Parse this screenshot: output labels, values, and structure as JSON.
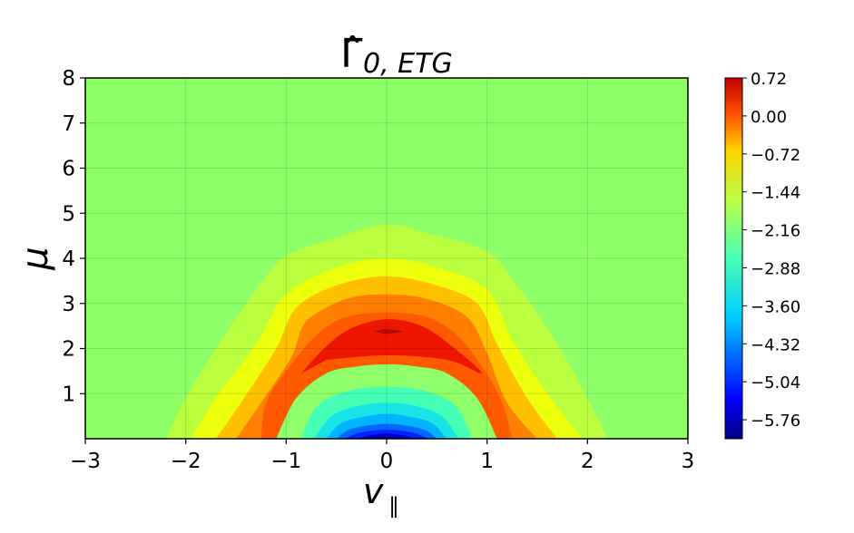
{
  "chart_data": {
    "type": "heatmap",
    "title": "Γ̂",
    "title_subscript": "0, ETG",
    "xlabel": "v",
    "xlabel_subscript": "∥",
    "ylabel": "μ",
    "xlim": [
      -3,
      3
    ],
    "ylim": [
      0,
      8
    ],
    "x_ticks": [
      -3,
      -2,
      -1,
      0,
      1,
      2,
      3
    ],
    "x_tick_labels": [
      "−3",
      "−2",
      "−1",
      "0",
      "1",
      "2",
      "3"
    ],
    "y_ticks": [
      1,
      2,
      3,
      4,
      5,
      6,
      7,
      8
    ],
    "y_tick_labels": [
      "1",
      "2",
      "3",
      "4",
      "5",
      "6",
      "7",
      "8"
    ],
    "grid": true,
    "colormap": "jet",
    "colorbar": {
      "vmin": -6.12,
      "vmax": 0.72,
      "ticks": [
        0.72,
        0.0,
        -0.72,
        -1.44,
        -2.16,
        -2.88,
        -3.6,
        -4.32,
        -5.04,
        -5.76
      ],
      "tick_labels": [
        "0.72",
        "0.00",
        "−0.72",
        "−1.44",
        "−2.16",
        "−2.88",
        "−3.60",
        "−4.32",
        "−5.04",
        "−5.76"
      ]
    },
    "contour_regions": [
      {
        "level": 0.1,
        "color": "#b9ff3e",
        "points": [
          [
            -2.2,
            0
          ],
          [
            -2.0,
            0.9
          ],
          [
            -1.7,
            2.0
          ],
          [
            -1.3,
            3.3
          ],
          [
            -1.0,
            4.05
          ],
          [
            -0.5,
            4.45
          ],
          [
            0,
            4.75
          ],
          [
            0.5,
            4.5
          ],
          [
            1.0,
            4.15
          ],
          [
            1.3,
            3.4
          ],
          [
            1.7,
            2.1
          ],
          [
            2.0,
            0.9
          ],
          [
            2.2,
            0
          ]
        ]
      },
      {
        "level": 0.18,
        "color": "#ecff0b",
        "points": [
          [
            -1.95,
            0
          ],
          [
            -1.7,
            0.9
          ],
          [
            -1.3,
            2.1
          ],
          [
            -1.0,
            3.2
          ],
          [
            -0.5,
            3.8
          ],
          [
            0,
            4.0
          ],
          [
            0.5,
            3.8
          ],
          [
            1.0,
            3.3
          ],
          [
            1.25,
            2.2
          ],
          [
            1.6,
            1.0
          ],
          [
            1.95,
            0
          ]
        ]
      },
      {
        "level": 0.28,
        "color": "#ffc000",
        "points": [
          [
            -1.7,
            0
          ],
          [
            -1.45,
            0.8
          ],
          [
            -1.1,
            2.0
          ],
          [
            -0.9,
            2.9
          ],
          [
            -0.5,
            3.4
          ],
          [
            0,
            3.6
          ],
          [
            0.5,
            3.4
          ],
          [
            0.9,
            3.0
          ],
          [
            1.1,
            2.1
          ],
          [
            1.4,
            0.9
          ],
          [
            1.7,
            0
          ]
        ]
      },
      {
        "level": 0.38,
        "color": "#ff8000",
        "points": [
          [
            -1.5,
            0
          ],
          [
            -1.25,
            0.8
          ],
          [
            -0.95,
            1.8
          ],
          [
            -0.8,
            2.6
          ],
          [
            -0.4,
            3.1
          ],
          [
            0,
            3.2
          ],
          [
            0.4,
            3.1
          ],
          [
            0.8,
            2.7
          ],
          [
            1.0,
            1.9
          ],
          [
            1.2,
            0.8
          ],
          [
            1.5,
            0
          ]
        ]
      },
      {
        "level": 0.48,
        "color": "#ff5a00",
        "points": [
          [
            -1.25,
            0
          ],
          [
            -1.2,
            0.8
          ],
          [
            -1.0,
            1.5
          ],
          [
            -0.7,
            2.3
          ],
          [
            -0.4,
            2.7
          ],
          [
            0,
            2.8
          ],
          [
            0.4,
            2.7
          ],
          [
            0.7,
            2.3
          ],
          [
            0.95,
            1.6
          ],
          [
            1.15,
            0.8
          ],
          [
            1.25,
            0
          ]
        ]
      },
      {
        "level": 0.58,
        "color": "#ee1600",
        "points": [
          [
            -0.85,
            1.45
          ],
          [
            -0.6,
            2.05
          ],
          [
            -0.35,
            2.45
          ],
          [
            0,
            2.65
          ],
          [
            0.35,
            2.5
          ],
          [
            0.65,
            2.05
          ],
          [
            0.95,
            1.45
          ],
          [
            0.6,
            1.75
          ],
          [
            0,
            1.85
          ],
          [
            -0.6,
            1.75
          ]
        ]
      },
      {
        "level": 0.68,
        "color": "#b40a00",
        "points": [
          [
            -0.12,
            2.38
          ],
          [
            0,
            2.43
          ],
          [
            0.16,
            2.38
          ],
          [
            0,
            2.32
          ]
        ]
      },
      {
        "level": -0.72,
        "color": "#8fff6b",
        "points": [
          [
            -1.1,
            0
          ],
          [
            -0.9,
            0.9
          ],
          [
            -0.6,
            1.45
          ],
          [
            -0.3,
            1.6
          ],
          [
            0,
            1.65
          ],
          [
            0.3,
            1.6
          ],
          [
            0.6,
            1.45
          ],
          [
            0.9,
            0.9
          ],
          [
            1.1,
            0
          ]
        ]
      },
      {
        "level": -1.44,
        "color": "#46ffb6",
        "points": [
          [
            -0.85,
            0
          ],
          [
            -0.7,
            0.7
          ],
          [
            -0.4,
            1.05
          ],
          [
            0,
            1.15
          ],
          [
            0.4,
            1.05
          ],
          [
            0.7,
            0.7
          ],
          [
            0.85,
            0
          ]
        ]
      },
      {
        "level": -2.16,
        "color": "#18e4e6",
        "points": [
          [
            -0.72,
            0
          ],
          [
            -0.55,
            0.5
          ],
          [
            -0.3,
            0.72
          ],
          [
            0,
            0.8
          ],
          [
            0.3,
            0.72
          ],
          [
            0.55,
            0.5
          ],
          [
            0.72,
            0
          ]
        ]
      },
      {
        "level": -2.88,
        "color": "#00b4ff",
        "points": [
          [
            -0.6,
            0
          ],
          [
            -0.45,
            0.35
          ],
          [
            -0.2,
            0.5
          ],
          [
            0,
            0.55
          ],
          [
            0.2,
            0.5
          ],
          [
            0.45,
            0.35
          ],
          [
            0.6,
            0
          ]
        ]
      },
      {
        "level": -3.6,
        "color": "#0068ff",
        "points": [
          [
            -0.5,
            0
          ],
          [
            -0.35,
            0.22
          ],
          [
            0,
            0.33
          ],
          [
            0.35,
            0.22
          ],
          [
            0.5,
            0
          ]
        ]
      },
      {
        "level": -4.32,
        "color": "#0022ff",
        "points": [
          [
            -0.42,
            0
          ],
          [
            -0.25,
            0.14
          ],
          [
            0,
            0.2
          ],
          [
            0.25,
            0.14
          ],
          [
            0.42,
            0
          ]
        ]
      },
      {
        "level": -5.04,
        "color": "#0000cc",
        "points": [
          [
            -0.3,
            0
          ],
          [
            -0.15,
            0.08
          ],
          [
            0,
            0.11
          ],
          [
            0.15,
            0.08
          ],
          [
            0.3,
            0
          ]
        ]
      },
      {
        "level": -5.76,
        "color": "#000080",
        "points": [
          [
            -0.18,
            0
          ],
          [
            0,
            0.05
          ],
          [
            0.18,
            0
          ]
        ]
      }
    ],
    "background_level": 0.0,
    "background_color": "#8fff68"
  }
}
